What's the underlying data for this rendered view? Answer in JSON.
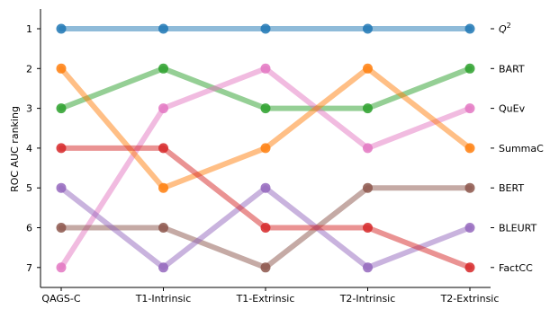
{
  "chart_data": {
    "type": "line",
    "title": "",
    "xlabel": "",
    "ylabel": "ROC AUC ranking",
    "categories": [
      "QAGS-C",
      "T1-Intrinsic",
      "T1-Extrinsic",
      "T2-Intrinsic",
      "T2-Extrinsic"
    ],
    "y_ticks": [
      "1",
      "2",
      "3",
      "4",
      "5",
      "6",
      "7"
    ],
    "ylim": [
      7.5,
      0.5
    ],
    "y_inverted": true,
    "grid": false,
    "legend": "right-side labels",
    "series": [
      {
        "name": "Q²",
        "label_base": "Q",
        "label_sup": "2",
        "color": "#1f77b4",
        "values": [
          1,
          1,
          1,
          1,
          1
        ]
      },
      {
        "name": "BART",
        "color": "#2ca02c",
        "values": [
          3,
          2,
          3,
          3,
          2
        ]
      },
      {
        "name": "QuEv",
        "color": "#e377c2",
        "values": [
          7,
          3,
          2,
          4,
          3
        ]
      },
      {
        "name": "SummaC",
        "color": "#ff7f0e",
        "values": [
          2,
          5,
          4,
          2,
          4
        ]
      },
      {
        "name": "BERT",
        "color": "#8c564b",
        "values": [
          6,
          6,
          7,
          5,
          5
        ]
      },
      {
        "name": "BLEURT",
        "color": "#9467bd",
        "values": [
          5,
          7,
          5,
          7,
          6
        ]
      },
      {
        "name": "FactCC",
        "color": "#d62728",
        "values": [
          4,
          4,
          6,
          6,
          7
        ]
      }
    ]
  }
}
